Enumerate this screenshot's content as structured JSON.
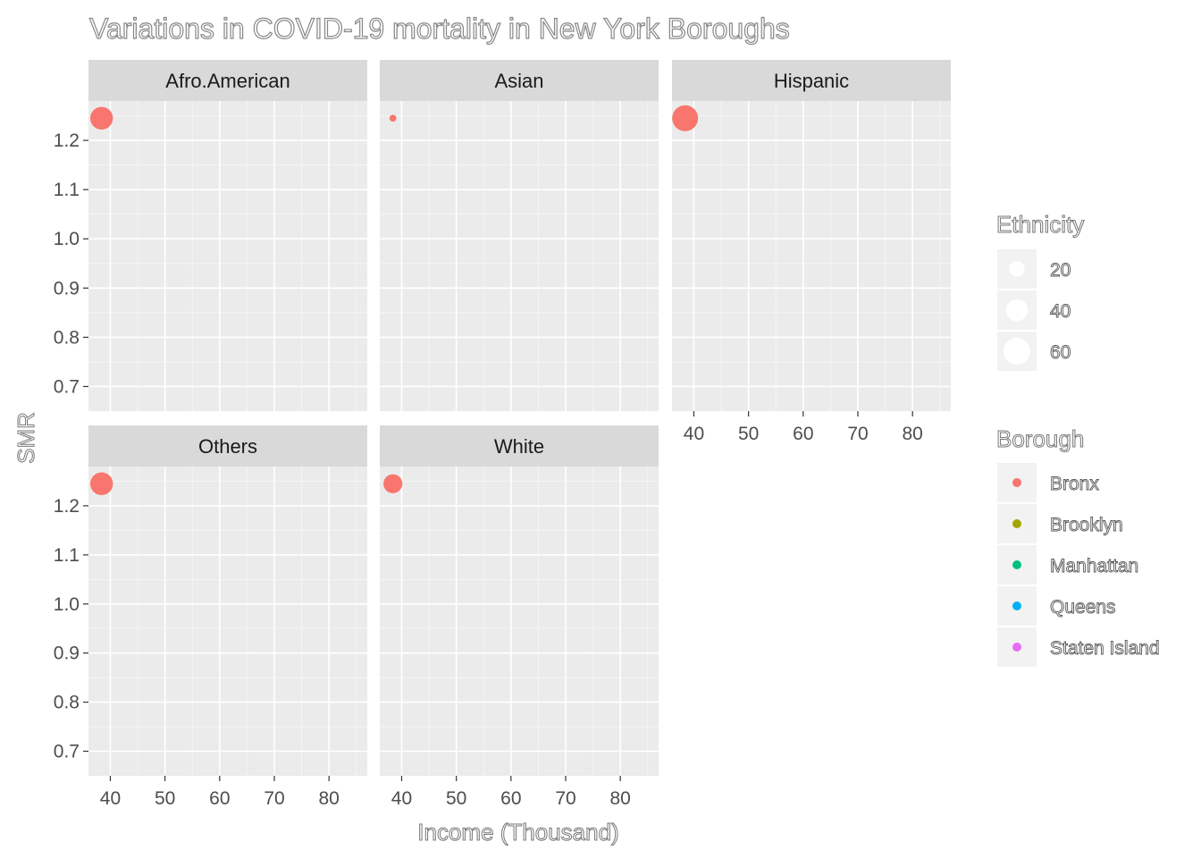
{
  "chart_data": {
    "type": "scatter",
    "title": "Variations in COVID-19 mortality in New York Boroughs",
    "xlabel": "Income (Thousand)",
    "ylabel": "SMR",
    "xlim": [
      36,
      87
    ],
    "ylim": [
      0.65,
      1.28
    ],
    "x_ticks": [
      40,
      50,
      60,
      70,
      80
    ],
    "x_tick_labels": [
      "40",
      "50",
      "60",
      "70",
      "80"
    ],
    "y_ticks": [
      0.7,
      0.8,
      0.9,
      1.0,
      1.1,
      1.2
    ],
    "y_tick_labels": [
      "0.7",
      "0.8",
      "0.9",
      "1.0",
      "1.1",
      "1.2"
    ],
    "grid": true,
    "facets": [
      {
        "name": "Afro.American",
        "points": [
          {
            "x": 38.4,
            "y": 1.245,
            "size": 43,
            "borough": "Bronx"
          }
        ]
      },
      {
        "name": "Asian",
        "points": [
          {
            "x": 38.4,
            "y": 1.245,
            "size": 4,
            "borough": "Bronx"
          }
        ]
      },
      {
        "name": "Hispanic",
        "points": [
          {
            "x": 38.4,
            "y": 1.245,
            "size": 56,
            "borough": "Bronx"
          }
        ]
      },
      {
        "name": "Others",
        "points": [
          {
            "x": 38.4,
            "y": 1.245,
            "size": 43,
            "borough": "Bronx"
          }
        ]
      },
      {
        "name": "White",
        "points": [
          {
            "x": 38.4,
            "y": 1.245,
            "size": 30,
            "borough": "Bronx"
          }
        ]
      }
    ],
    "size_legend": {
      "title": "Ethnicity",
      "entries": [
        {
          "label": "20",
          "value": 20
        },
        {
          "label": "40",
          "value": 40
        },
        {
          "label": "60",
          "value": 60
        }
      ]
    },
    "color_legend": {
      "title": "Borough",
      "entries": [
        {
          "label": "Bronx",
          "color": "#F8766D"
        },
        {
          "label": "Brooklyn",
          "color": "#A3A500"
        },
        {
          "label": "Manhattan",
          "color": "#00BF7D"
        },
        {
          "label": "Queens",
          "color": "#00B0F6"
        },
        {
          "label": "Staten Island",
          "color": "#E76BF3"
        }
      ]
    },
    "legend_position": "right",
    "colors": {
      "panel_background": "#EBEBEB",
      "strip_background": "#D9D9D9",
      "grid_major": "#FFFFFF",
      "grid_minor": "#F5F5F5"
    }
  }
}
